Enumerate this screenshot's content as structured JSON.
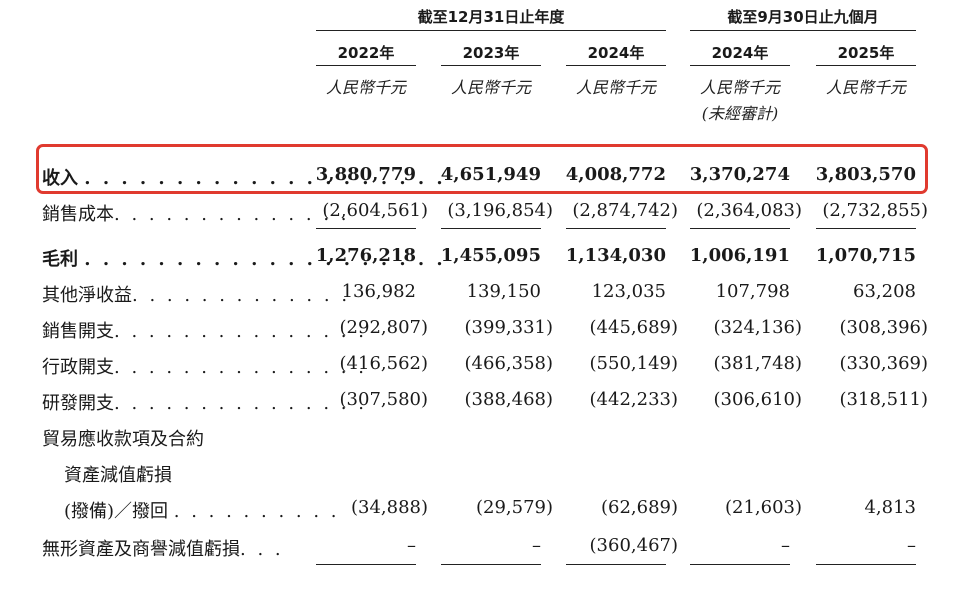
{
  "header": {
    "group1": "截至12月31日止年度",
    "group2": "截至9月30日止九個月",
    "years": [
      "2022年",
      "2023年",
      "2024年",
      "2024年",
      "2025年"
    ],
    "unit": "人民幣千元",
    "unaudited": "(未經審計)"
  },
  "rows": [
    {
      "label": "收入",
      "dots": ". . . . . . . . . . . . . . . . . . . .",
      "values": [
        "3,880,779",
        "4,651,949",
        "4,008,772",
        "3,370,274",
        "3,803,570"
      ]
    },
    {
      "label": "銷售成本",
      "dots": ". . . . . . . . . . . . . .",
      "values": [
        "(2,604,561)",
        "(3,196,854)",
        "(2,874,742)",
        "(2,364,083)",
        "(2,732,855)"
      ]
    },
    {
      "label": "毛利",
      "dots": ". . . . . . . . . . . . . . . . . . . .",
      "values": [
        "1,276,218",
        "1,455,095",
        "1,134,030",
        "1,006,191",
        "1,070,715"
      ]
    },
    {
      "label": "其他淨收益",
      "dots": ". . . . . . . . . . . . .",
      "values": [
        "136,982",
        "139,150",
        "123,035",
        "107,798",
        "63,208"
      ]
    },
    {
      "label": "銷售開支",
      "dots": ". . . . . . . . . . . . . . .",
      "values": [
        "(292,807)",
        "(399,331)",
        "(445,689)",
        "(324,136)",
        "(308,396)"
      ]
    },
    {
      "label": "行政開支",
      "dots": ". . . . . . . . . . . . . . .",
      "values": [
        "(416,562)",
        "(466,358)",
        "(550,149)",
        "(381,748)",
        "(330,369)"
      ]
    },
    {
      "label": "研發開支",
      "dots": ". . . . . . . . . . . . . . .",
      "values": [
        "(307,580)",
        "(388,468)",
        "(442,233)",
        "(306,610)",
        "(318,511)"
      ]
    },
    {
      "label": "貿易應收款項及合約",
      "dots": "",
      "values": []
    },
    {
      "label": "資產減值虧損",
      "dots": "",
      "values": []
    },
    {
      "label": "(撥備)／撥回",
      "dots": ". . . . . . . . . .",
      "values": [
        "(34,888)",
        "(29,579)",
        "(62,689)",
        "(21,603)",
        "4,813"
      ]
    },
    {
      "label": "無形資產及商譽減值虧損",
      "dots": ". . .",
      "values": [
        "–",
        "–",
        "(360,467)",
        "–",
        "–"
      ]
    }
  ]
}
